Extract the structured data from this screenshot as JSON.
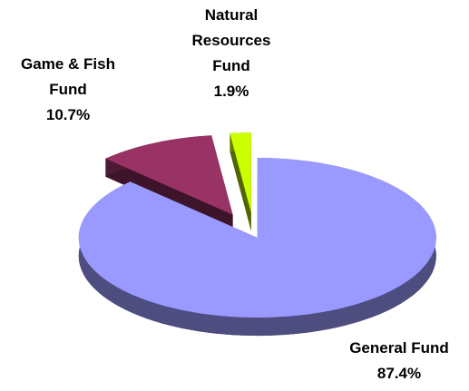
{
  "chart_data": {
    "type": "pie3d",
    "categories": [
      "General Fund",
      "Game & Fish Fund",
      "Natural Resources Fund"
    ],
    "values": [
      87.4,
      10.7,
      1.9
    ],
    "value_labels": [
      "87.4%",
      "10.7%",
      "1.9%"
    ],
    "colors": [
      "#9999ff",
      "#993366",
      "#ccff00"
    ]
  }
}
